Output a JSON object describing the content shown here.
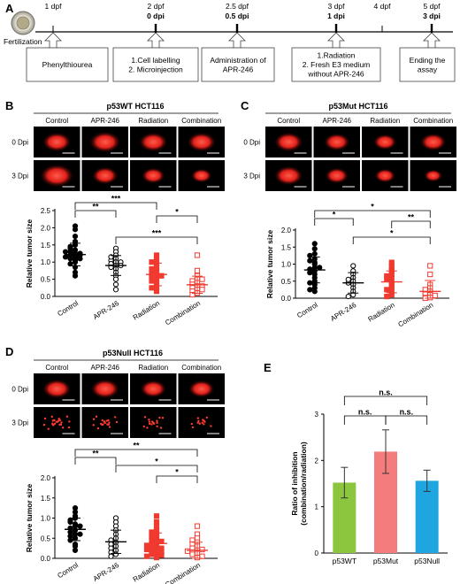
{
  "panels": {
    "A": "A",
    "B": "B",
    "C": "C",
    "D": "D",
    "E": "E"
  },
  "timeline": {
    "fertilization": "Fertilization",
    "ticks": [
      {
        "top": "1 dpf",
        "bottom": ""
      },
      {
        "top": "2 dpf",
        "bottom": "0 dpi"
      },
      {
        "top": "2.5 dpf",
        "bottom": "0.5 dpi"
      },
      {
        "top": "3 dpf",
        "bottom": "1 dpi"
      },
      {
        "top": "4 dpf",
        "bottom": ""
      },
      {
        "top": "5 dpf",
        "bottom": "3 dpi"
      }
    ],
    "boxes": [
      {
        "lines": [
          "Phenylthiourea"
        ]
      },
      {
        "lines": [
          "1.Cell labelling",
          "2. Microinjection"
        ]
      },
      {
        "lines": [
          "Administration of",
          "APR-246"
        ]
      },
      {
        "lines": [
          "1.Radiation",
          "2. Fresh E3 medium",
          "without APR-246"
        ]
      },
      {
        "lines": [
          "Ending the",
          "assay"
        ]
      }
    ]
  },
  "groups": [
    "Control",
    "APR-246",
    "Radiation",
    "Combination"
  ],
  "rows": [
    "0 Dpi",
    "3 Dpi"
  ],
  "ylabel_size": "Relative tumor size",
  "panel_b": {
    "title": "p53WT HCT116",
    "yticks": [
      "0.0",
      "0.5",
      "1.0",
      "1.5",
      "2.0",
      "2.5"
    ],
    "sig": [
      "**",
      "***",
      "*",
      "***"
    ]
  },
  "panel_c": {
    "title": "p53Mut HCT116",
    "yticks": [
      "0.0",
      "0.5",
      "1.0",
      "1.5",
      "2.0"
    ],
    "sig": [
      "*",
      "*",
      "**",
      "*"
    ]
  },
  "panel_d": {
    "title": "p53Null HCT116",
    "yticks": [
      "0.0",
      "0.5",
      "1.0",
      "1.5",
      "2.0"
    ],
    "sig": [
      "**",
      "**",
      "*",
      "*"
    ]
  },
  "chart_data": [
    {
      "type": "scatter",
      "panel": "B",
      "title": "p53WT HCT116",
      "ylabel": "Relative tumor size",
      "categories": [
        "Control",
        "APR-246",
        "Radiation",
        "Combination"
      ],
      "ylim": [
        0,
        2.5
      ],
      "means": [
        1.22,
        0.9,
        0.64,
        0.34
      ],
      "sd": [
        0.33,
        0.29,
        0.33,
        0.25
      ],
      "points": [
        [
          1.0,
          1.05,
          1.1,
          1.15,
          1.2,
          1.25,
          1.3,
          1.35,
          1.4,
          1.5,
          1.6,
          1.75,
          1.95,
          2.05,
          1.1,
          1.2,
          0.95,
          0.85,
          0.7,
          0.6,
          1.45,
          1.25,
          1.3,
          1.15
        ],
        [
          1.4,
          1.3,
          1.2,
          1.1,
          1.05,
          1.0,
          0.95,
          0.9,
          0.85,
          0.8,
          0.7,
          0.6,
          0.5,
          0.35,
          0.2,
          1.15,
          1.0,
          0.9
        ],
        [
          1.2,
          1.05,
          0.95,
          0.85,
          0.75,
          0.7,
          0.65,
          0.6,
          0.55,
          0.5,
          0.45,
          0.4,
          0.3,
          0.25,
          0.15,
          0.8,
          0.6,
          1.0
        ],
        [
          1.2,
          0.75,
          0.6,
          0.5,
          0.45,
          0.4,
          0.35,
          0.3,
          0.25,
          0.2,
          0.15,
          0.1,
          0.05,
          0.3,
          0.5,
          0.2
        ]
      ]
    },
    {
      "type": "scatter",
      "panel": "C",
      "title": "p53Mut HCT116",
      "ylabel": "Relative tumor size",
      "categories": [
        "Control",
        "APR-246",
        "Radiation",
        "Combination"
      ],
      "ylim": [
        0,
        2.0
      ],
      "means": [
        0.83,
        0.45,
        0.48,
        0.2
      ],
      "sd": [
        0.38,
        0.3,
        0.32,
        0.32
      ],
      "points": [
        [
          1.6,
          1.45,
          1.3,
          1.25,
          1.15,
          1.05,
          1.0,
          0.9,
          0.85,
          0.8,
          0.75,
          0.7,
          0.6,
          0.5,
          0.45,
          0.4,
          0.3,
          0.25,
          0.2,
          0.9,
          1.1
        ],
        [
          0.95,
          0.8,
          0.7,
          0.6,
          0.5,
          0.45,
          0.4,
          0.3,
          0.2,
          0.1,
          0.05,
          0.55
        ],
        [
          1.05,
          0.95,
          0.85,
          0.8,
          0.7,
          0.6,
          0.55,
          0.45,
          0.4,
          0.3,
          0.2,
          0.1,
          0.05,
          0.65,
          0.25
        ],
        [
          0.95,
          0.7,
          0.4,
          0.3,
          0.2,
          0.1,
          0.05,
          0.02,
          0.15,
          0.25,
          0.0,
          0.08
        ]
      ]
    },
    {
      "type": "scatter",
      "panel": "D",
      "title": "p53Null HCT116",
      "ylabel": "Relative tumor size",
      "categories": [
        "Control",
        "APR-246",
        "Radiation",
        "Combination"
      ],
      "ylim": [
        0,
        2.0
      ],
      "means": [
        0.72,
        0.41,
        0.37,
        0.2
      ],
      "sd": [
        0.28,
        0.29,
        0.26,
        0.2
      ],
      "points": [
        [
          1.25,
          1.15,
          1.05,
          1.0,
          0.95,
          0.85,
          0.8,
          0.75,
          0.7,
          0.65,
          0.6,
          0.55,
          0.5,
          0.45,
          0.35,
          0.3,
          0.2,
          0.9,
          0.8,
          0.6
        ],
        [
          1.0,
          0.9,
          0.8,
          0.7,
          0.6,
          0.5,
          0.45,
          0.4,
          0.35,
          0.3,
          0.25,
          0.2,
          0.15,
          0.1,
          0.05
        ],
        [
          1.05,
          0.9,
          0.8,
          0.7,
          0.6,
          0.55,
          0.5,
          0.45,
          0.4,
          0.35,
          0.3,
          0.28,
          0.25,
          0.2,
          0.18,
          0.15,
          0.12,
          0.1,
          0.08,
          0.05,
          0.02,
          0.65,
          0.42,
          0.32,
          0.22
        ],
        [
          0.8,
          0.6,
          0.5,
          0.45,
          0.4,
          0.35,
          0.3,
          0.25,
          0.2,
          0.15,
          0.12,
          0.1,
          0.05,
          0.02,
          0.22,
          0.18
        ]
      ]
    },
    {
      "type": "bar",
      "panel": "E",
      "ylabel": "Ratio of inhibition\n(combination/radiation)",
      "categories": [
        "p53WT",
        "p53Mut",
        "p53Null"
      ],
      "values": [
        1.52,
        2.19,
        1.56
      ],
      "errors": [
        0.33,
        0.47,
        0.23
      ],
      "colors": [
        "#8cc63f",
        "#f47c7c",
        "#1fa6e0"
      ],
      "ylim": [
        0,
        3
      ],
      "yticks": [
        "0",
        "1",
        "2",
        "3"
      ],
      "sig": [
        "n.s.",
        "n.s.",
        "n.s."
      ]
    }
  ]
}
